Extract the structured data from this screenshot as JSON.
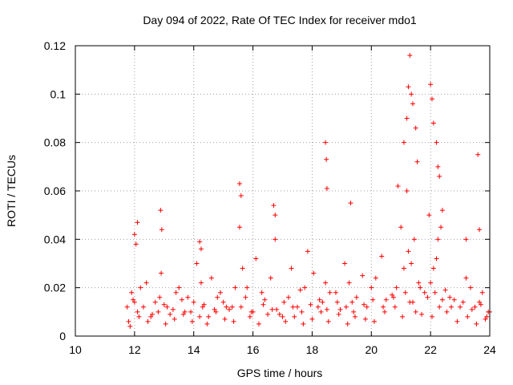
{
  "chart_data": {
    "type": "scatter",
    "title": "Day 094 of 2022, Rate Of TEC Index for receiver mdo1",
    "xlabel": "GPS time / hours",
    "ylabel": "ROTI / TECUs",
    "xlim": [
      10,
      24
    ],
    "ylim": [
      0,
      0.12
    ],
    "x_ticks": [
      10,
      12,
      14,
      16,
      18,
      20,
      22,
      24
    ],
    "x_tick_labels": [
      "10",
      "12",
      "14",
      "16",
      "18",
      "20",
      "22",
      "24"
    ],
    "y_ticks": [
      0,
      0.02,
      0.04,
      0.06,
      0.08,
      0.1,
      0.12
    ],
    "y_tick_labels": [
      "0",
      "0.02",
      "0.04",
      "0.06",
      "0.08",
      "0.1",
      "0.12"
    ],
    "grid": true,
    "legend": "none",
    "marker": "+",
    "series_color": "#ff0000",
    "series": [
      {
        "name": "ROTI",
        "x": [
          11.75,
          11.9,
          12.1,
          12.4,
          12.7,
          12.9,
          13.2,
          13.5,
          13.8,
          14.1,
          14.3,
          14.6,
          14.9,
          15.2,
          15.55,
          15.8,
          16.1,
          16.4,
          16.75,
          17.0,
          17.3,
          17.6,
          17.85,
          18.2,
          18.45,
          18.8,
          19.1,
          19.35,
          19.7,
          20.0,
          20.35,
          20.7,
          21.0,
          21.2,
          21.35,
          21.6,
          21.95,
          22.1,
          22.25,
          22.5,
          22.8,
          23.2,
          23.5,
          23.75,
          24.0,
          11.8,
          12.0,
          12.2,
          12.55,
          12.85,
          13.1,
          13.4,
          13.7,
          14.0,
          14.25,
          14.5,
          14.8,
          15.1,
          15.4,
          15.65,
          15.95,
          16.3,
          16.6,
          16.9,
          17.2,
          17.5,
          17.75,
          18.05,
          18.35,
          18.6,
          18.95,
          19.25,
          19.5,
          19.85,
          20.15,
          20.5,
          20.85,
          21.1,
          21.25,
          21.45,
          21.8,
          22.0,
          22.2,
          22.35,
          22.65,
          23.0,
          23.35,
          23.65,
          23.9,
          11.85,
          12.15,
          12.45,
          12.8,
          13.05,
          13.35,
          13.65,
          13.95,
          14.2,
          14.45,
          14.75,
          15.05,
          15.35,
          15.6,
          15.9,
          16.2,
          16.5,
          16.8,
          17.1,
          17.4,
          17.7,
          18.0,
          18.3,
          18.55,
          18.9,
          19.2,
          19.45,
          19.8,
          20.1,
          20.45,
          20.8,
          21.05,
          21.3,
          21.5,
          21.7,
          22.05,
          22.3,
          22.55,
          22.9,
          23.25,
          23.55,
          23.85,
          11.95,
          12.3,
          12.6,
          13.0,
          13.3,
          13.6,
          13.9,
          14.35,
          14.7,
          15.0,
          15.3,
          15.75,
          16.0,
          16.35,
          16.65,
          17.05,
          17.35,
          17.65,
          17.95,
          18.25,
          18.5,
          18.85,
          19.15,
          19.4,
          19.75,
          20.05,
          20.4,
          20.75,
          21.15,
          21.4,
          21.65,
          21.9,
          22.15,
          22.4,
          22.7,
          23.1,
          23.4,
          23.7,
          23.95,
          12.0,
          12.05,
          12.1,
          12.88,
          12.92,
          14.2,
          14.25,
          15.55,
          15.6,
          16.7,
          16.75,
          18.45,
          18.48,
          18.5,
          19.3,
          20.9,
          21.1,
          21.2,
          21.25,
          21.3,
          21.35,
          21.4,
          21.5,
          21.55,
          22.0,
          22.05,
          22.1,
          22.2,
          22.25,
          22.3,
          22.4,
          23.2,
          23.6,
          23.65
        ],
        "y": [
          0.012,
          0.018,
          0.01,
          0.022,
          0.014,
          0.026,
          0.009,
          0.02,
          0.016,
          0.03,
          0.012,
          0.024,
          0.018,
          0.011,
          0.045,
          0.02,
          0.032,
          0.015,
          0.04,
          0.008,
          0.028,
          0.019,
          0.035,
          0.012,
          0.022,
          0.018,
          0.03,
          0.014,
          0.025,
          0.02,
          0.033,
          0.017,
          0.045,
          0.06,
          0.03,
          0.022,
          0.05,
          0.028,
          0.04,
          0.019,
          0.015,
          0.024,
          0.012,
          0.018,
          0.01,
          0.006,
          0.014,
          0.02,
          0.008,
          0.016,
          0.012,
          0.018,
          0.01,
          0.014,
          0.022,
          0.008,
          0.016,
          0.012,
          0.02,
          0.028,
          0.01,
          0.018,
          0.024,
          0.009,
          0.016,
          0.012,
          0.02,
          0.026,
          0.014,
          0.018,
          0.011,
          0.022,
          0.016,
          0.012,
          0.024,
          0.015,
          0.02,
          0.028,
          0.035,
          0.04,
          0.018,
          0.022,
          0.032,
          0.045,
          0.016,
          0.012,
          0.02,
          0.014,
          0.008,
          0.004,
          0.008,
          0.006,
          0.01,
          0.005,
          0.007,
          0.009,
          0.006,
          0.008,
          0.005,
          0.01,
          0.007,
          0.006,
          0.012,
          0.008,
          0.005,
          0.009,
          0.011,
          0.006,
          0.008,
          0.005,
          0.007,
          0.01,
          0.006,
          0.009,
          0.005,
          0.008,
          0.007,
          0.006,
          0.01,
          0.012,
          0.008,
          0.014,
          0.01,
          0.009,
          0.008,
          0.012,
          0.01,
          0.006,
          0.008,
          0.005,
          0.007,
          0.015,
          0.012,
          0.009,
          0.013,
          0.011,
          0.015,
          0.01,
          0.013,
          0.011,
          0.014,
          0.012,
          0.016,
          0.01,
          0.013,
          0.011,
          0.014,
          0.012,
          0.01,
          0.013,
          0.015,
          0.011,
          0.014,
          0.012,
          0.01,
          0.013,
          0.015,
          0.012,
          0.016,
          0.018,
          0.014,
          0.02,
          0.016,
          0.018,
          0.015,
          0.012,
          0.014,
          0.011,
          0.013,
          0.01,
          0.042,
          0.038,
          0.047,
          0.052,
          0.044,
          0.039,
          0.036,
          0.063,
          0.058,
          0.054,
          0.05,
          0.08,
          0.073,
          0.061,
          0.055,
          0.062,
          0.08,
          0.09,
          0.103,
          0.116,
          0.1,
          0.096,
          0.086,
          0.072,
          0.104,
          0.098,
          0.088,
          0.08,
          0.07,
          0.066,
          0.052,
          0.04,
          0.075,
          0.044
        ]
      }
    ]
  }
}
